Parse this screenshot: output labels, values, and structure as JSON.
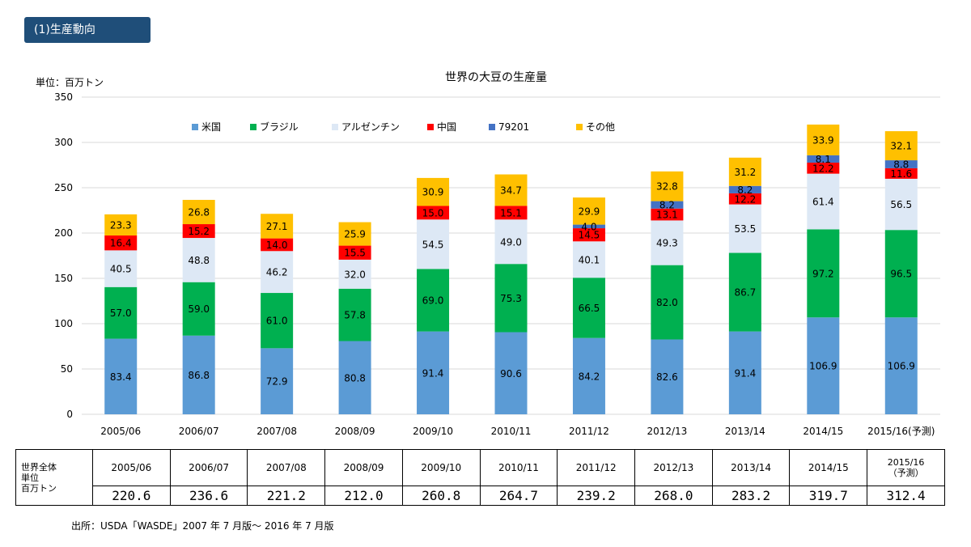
{
  "section_tag": "(1)生産動向",
  "chart_data": {
    "type": "bar",
    "stacked": true,
    "title": "世界の大豆の生産量",
    "ylabel": "単位：百万トン",
    "xlabel": "",
    "ylim": [
      0,
      350
    ],
    "yticks": [
      "0",
      "50",
      "100",
      "150",
      "200",
      "250",
      "300",
      "350"
    ],
    "grid": true,
    "legend_position": "top",
    "categories": [
      "2005/06",
      "2006/07",
      "2007/08",
      "2008/09",
      "2009/10",
      "2010/11",
      "2011/12",
      "2012/13",
      "2013/14",
      "2014/15",
      "2015/16(予測)"
    ],
    "series": [
      {
        "name": "米国",
        "color": "#5b9bd5",
        "label_color": "#000000",
        "values": [
          83.4,
          86.8,
          72.9,
          80.8,
          91.4,
          90.6,
          84.2,
          82.6,
          91.4,
          106.9,
          106.9
        ],
        "labels": [
          "83.4",
          "86.8",
          "72.9",
          "80.8",
          "91.4",
          "90.6",
          "84.2",
          "82.6",
          "91.4",
          "106.9",
          "106.9"
        ]
      },
      {
        "name": "ブラジル",
        "color": "#00b050",
        "label_color": "#000000",
        "values": [
          57.0,
          59.0,
          61.0,
          57.8,
          69.0,
          75.3,
          66.5,
          82.0,
          86.7,
          97.2,
          96.5
        ],
        "labels": [
          "57.0",
          "59.0",
          "61.0",
          "57.8",
          "69.0",
          "75.3",
          "66.5",
          "82.0",
          "86.7",
          "97.2",
          "96.5"
        ]
      },
      {
        "name": "アルゼンチン",
        "color": "#dde8f5",
        "label_color": "#000000",
        "values": [
          40.5,
          48.8,
          46.2,
          32.0,
          54.5,
          49.0,
          40.1,
          49.3,
          53.5,
          61.4,
          56.5
        ],
        "labels": [
          "40.5",
          "48.8",
          "46.2",
          "32.0",
          "54.5",
          "49.0",
          "40.1",
          "49.3",
          "53.5",
          "61.4",
          "56.5"
        ]
      },
      {
        "name": "中国",
        "color": "#ff0000",
        "label_color": "#000000",
        "values": [
          16.4,
          15.2,
          14.0,
          15.5,
          15.0,
          15.1,
          14.5,
          13.1,
          12.2,
          12.2,
          11.6
        ],
        "labels": [
          "16.4",
          "15.2",
          "14.0",
          "15.5",
          "15.0",
          "15.1",
          "14.5",
          "13.1",
          "12.2",
          "12.2",
          "11.6"
        ]
      },
      {
        "name": "79201",
        "color": "#4472c4",
        "label_color": "#000000",
        "values": [
          0,
          0,
          0,
          0,
          0,
          0,
          4.0,
          8.2,
          8.2,
          8.1,
          8.8
        ],
        "labels": [
          "",
          "",
          "",
          "",
          "",
          "",
          "4.0",
          "8.2",
          "8.2",
          "8.1",
          "8.8"
        ]
      },
      {
        "name": "その他",
        "color": "#ffc000",
        "label_color": "#000000",
        "values": [
          23.3,
          26.8,
          27.1,
          25.9,
          30.9,
          34.7,
          29.9,
          32.8,
          31.2,
          33.9,
          32.1
        ],
        "labels": [
          "23.3",
          "26.8",
          "27.1",
          "25.9",
          "30.9",
          "34.7",
          "29.9",
          "32.8",
          "31.2",
          "33.9",
          "32.1"
        ]
      }
    ]
  },
  "summary_table": {
    "row_header": [
      "世界全体",
      "単位",
      "百万トン"
    ],
    "years": [
      "2005/06",
      "2006/07",
      "2007/08",
      "2008/09",
      "2009/10",
      "2010/11",
      "2011/12",
      "2012/13",
      "2013/14",
      "2014/15",
      "2015/16\n（予測）"
    ],
    "totals": [
      "220.6",
      "236.6",
      "221.2",
      "212.0",
      "260.8",
      "264.7",
      "239.2",
      "268.0",
      "283.2",
      "319.7",
      "312.4"
    ]
  },
  "source": "出所：USDA「WASDE」2007 年 7 月版～ 2016 年 7 月版"
}
